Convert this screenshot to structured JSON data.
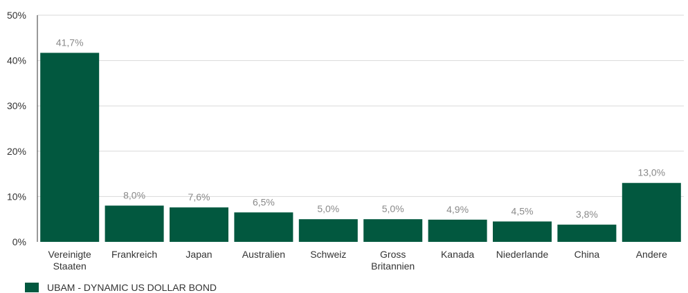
{
  "chart_data": {
    "type": "bar",
    "categories": [
      [
        "Vereinigte",
        "Staaten"
      ],
      [
        "Frankreich"
      ],
      [
        "Japan"
      ],
      [
        "Australien"
      ],
      [
        "Schweiz"
      ],
      [
        "Gross",
        "Britannien"
      ],
      [
        "Kanada"
      ],
      [
        "Niederlande"
      ],
      [
        "China"
      ],
      [
        "Andere"
      ]
    ],
    "series": [
      {
        "name": "UBAM - DYNAMIC US DOLLAR BOND",
        "color": "#02583f",
        "values": [
          41.7,
          8.0,
          7.6,
          6.5,
          5.0,
          5.0,
          4.9,
          4.5,
          3.8,
          13.0
        ],
        "labels": [
          "41,7%",
          "8,0%",
          "7,6%",
          "6,5%",
          "5,0%",
          "5,0%",
          "4,9%",
          "4,5%",
          "3,8%",
          "13,0%"
        ]
      }
    ],
    "ylim": [
      0,
      50
    ],
    "yticks": [
      0,
      10,
      20,
      30,
      40,
      50
    ],
    "ytick_labels": [
      "0%",
      "10%",
      "20%",
      "30%",
      "40%",
      "50%"
    ],
    "grid": true,
    "legend_position": "bottom-left"
  }
}
